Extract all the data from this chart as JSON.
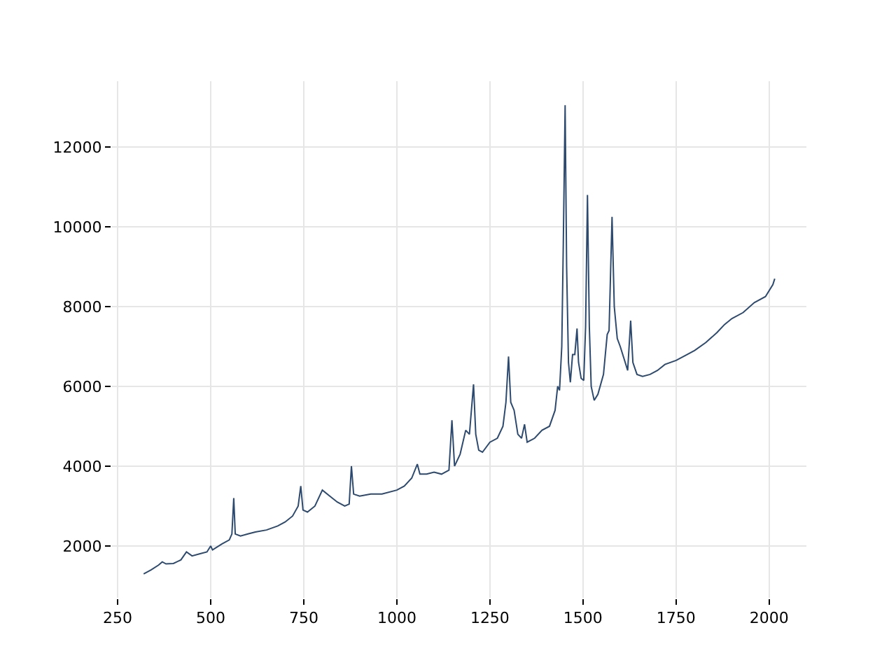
{
  "chart_data": {
    "type": "line",
    "xlim": [
      235,
      2100
    ],
    "ylim": [
      700,
      13650
    ],
    "xticks": [
      250,
      500,
      750,
      1000,
      1250,
      1500,
      1750,
      2000
    ],
    "yticks": [
      2000,
      4000,
      6000,
      8000,
      10000,
      12000
    ],
    "grid": true,
    "line_style": "solid",
    "series": [
      {
        "color": "#2d4a6e",
        "x": [
          320,
          340,
          360,
          370,
          380,
          400,
          420,
          435,
          450,
          470,
          490,
          500,
          505,
          530,
          550,
          557,
          562,
          566,
          580,
          600,
          620,
          650,
          680,
          700,
          720,
          735,
          742,
          748,
          760,
          780,
          800,
          820,
          840,
          860,
          872,
          878,
          884,
          900,
          930,
          960,
          1000,
          1020,
          1040,
          1055,
          1062,
          1080,
          1100,
          1120,
          1140,
          1148,
          1155,
          1170,
          1185,
          1195,
          1206,
          1212,
          1220,
          1230,
          1250,
          1270,
          1285,
          1293,
          1300,
          1306,
          1315,
          1325,
          1335,
          1343,
          1350,
          1370,
          1390,
          1410,
          1425,
          1432,
          1437,
          1443,
          1447,
          1452,
          1456,
          1461,
          1466,
          1472,
          1478,
          1484,
          1488,
          1495,
          1502,
          1507,
          1512,
          1517,
          1522,
          1530,
          1540,
          1555,
          1565,
          1570,
          1578,
          1584,
          1592,
          1600,
          1610,
          1620,
          1628,
          1634,
          1645,
          1660,
          1680,
          1700,
          1720,
          1750,
          1780,
          1800,
          1830,
          1860,
          1880,
          1900,
          1930,
          1960,
          1990,
          2010,
          2015
        ],
        "values": [
          1300,
          1400,
          1520,
          1600,
          1550,
          1560,
          1650,
          1850,
          1750,
          1800,
          1850,
          2000,
          1900,
          2050,
          2150,
          2300,
          3200,
          2300,
          2250,
          2300,
          2350,
          2400,
          2500,
          2600,
          2750,
          3000,
          3500,
          2900,
          2850,
          3000,
          3400,
          3250,
          3100,
          3000,
          3050,
          4000,
          3300,
          3250,
          3300,
          3300,
          3400,
          3500,
          3700,
          4050,
          3800,
          3800,
          3850,
          3800,
          3900,
          5150,
          4000,
          4300,
          4900,
          4800,
          6050,
          4800,
          4400,
          4350,
          4600,
          4700,
          5000,
          5600,
          6750,
          5600,
          5400,
          4800,
          4700,
          5050,
          4600,
          4700,
          4900,
          5000,
          5400,
          6000,
          5900,
          7000,
          9500,
          13050,
          9000,
          6600,
          6100,
          6800,
          6800,
          7450,
          6600,
          6200,
          6150,
          7500,
          10800,
          7500,
          6000,
          5650,
          5800,
          6300,
          7300,
          7400,
          10250,
          8000,
          7200,
          7000,
          6700,
          6400,
          7650,
          6600,
          6300,
          6250,
          6300,
          6400,
          6550,
          6650,
          6800,
          6900,
          7100,
          7350,
          7550,
          7700,
          7850,
          8100,
          8250,
          8550,
          8700
        ]
      }
    ]
  }
}
